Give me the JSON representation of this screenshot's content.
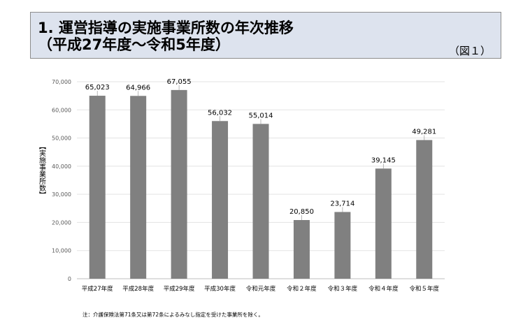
{
  "header": {
    "title_line1": "1. 運営指導の実施事業所数の年次推移",
    "title_line2": "（平成27年度〜令和5年度）",
    "figure_no": "（図１）"
  },
  "note": "注：介護保険法第71条又は第72条によるみなし指定を受けた事業所を除く。",
  "chart_data": {
    "type": "bar",
    "categories": [
      "平成27年度",
      "平成28年度",
      "平成29年度",
      "平成30年度",
      "令和元年度",
      "令和２年度",
      "令和３年度",
      "令和４年度",
      "令和５年度"
    ],
    "values": [
      65023,
      64966,
      67055,
      56032,
      55014,
      20850,
      23714,
      39145,
      49281
    ],
    "value_labels": [
      "65,023",
      "64,966",
      "67,055",
      "56,032",
      "55,014",
      "20,850",
      "23,714",
      "39,145",
      "49,281"
    ],
    "ylabel": "【実施事業所数】",
    "ylim": [
      0,
      70000
    ],
    "yticks": [
      0,
      10000,
      20000,
      30000,
      40000,
      50000,
      60000,
      70000
    ],
    "ytick_labels": [
      "0",
      "10,000",
      "20,000",
      "30,000",
      "40,000",
      "50,000",
      "60,000",
      "70,000"
    ],
    "grid": true,
    "bar_color": "#808080"
  }
}
